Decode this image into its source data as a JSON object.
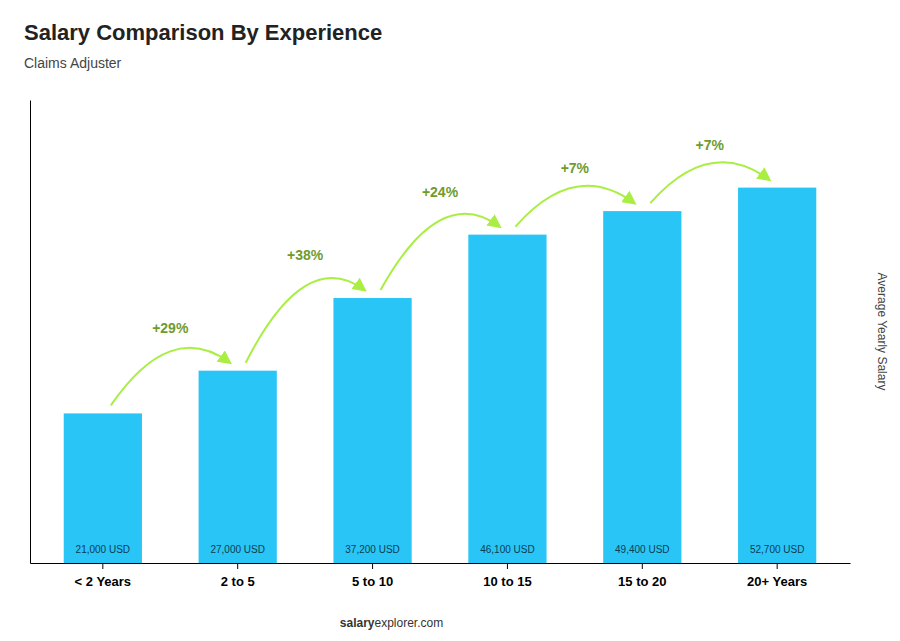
{
  "chart_data": {
    "type": "bar",
    "title": "Salary Comparison By Experience",
    "subtitle": "Claims Adjuster",
    "ylabel": "Average Yearly Salary",
    "categories": [
      "< 2 Years",
      "2 to 5",
      "5 to 10",
      "10 to 15",
      "15 to 20",
      "20+ Years"
    ],
    "values": [
      21000,
      27000,
      37200,
      46100,
      49400,
      52700
    ],
    "value_labels": [
      "21,000 USD",
      "27,000 USD",
      "37,200 USD",
      "46,100 USD",
      "49,400 USD",
      "52,700 USD"
    ],
    "data_labels": true,
    "color": "#29c5f6",
    "ylim": [
      0,
      65000
    ],
    "yticks": [],
    "tick_labels": "x",
    "grid": false,
    "annotations": [
      {
        "text": "+29%",
        "color": "#aaee44"
      },
      {
        "text": "+38%",
        "color": "#aaee44"
      },
      {
        "text": "+24%",
        "color": "#aaee44"
      },
      {
        "text": "+7%",
        "color": "#aaee44"
      },
      {
        "text": "+7%",
        "color": "#aaee44"
      }
    ],
    "footer": [
      "salary",
      "explorer.com"
    ]
  }
}
